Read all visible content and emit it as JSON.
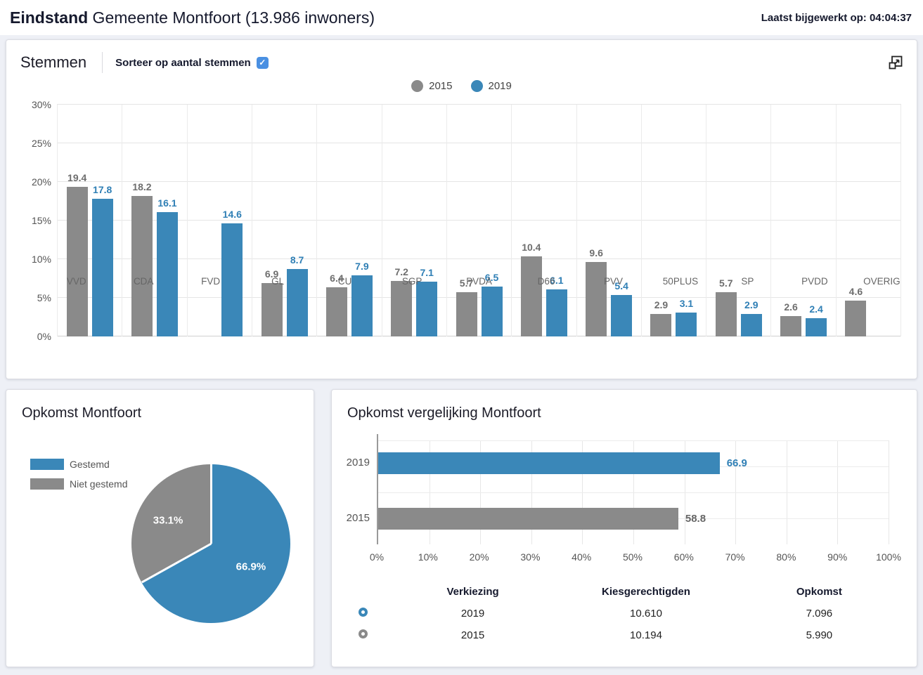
{
  "header": {
    "title_bold": "Eindstand",
    "title_rest": " Gemeente Montfoort (13.986 inwoners)",
    "last_updated": "Laatst bijgewerkt op: 04:04:37"
  },
  "colors": {
    "blue": "#3a87b8",
    "gray": "#8a8a8a",
    "blue_label": "#2f7fb5",
    "gray_label": "#6e6e6e",
    "checkbox_blue": "#4a90e2"
  },
  "stemmen_panel": {
    "title": "Stemmen",
    "sort_checkbox_label": "Sorteer op aantal stemmen",
    "sort_checkbox_checked": true,
    "checkmark": "✓"
  },
  "opkomst_panel": {
    "title": "Opkomst Montfoort"
  },
  "vergelijking_panel": {
    "title": "Opkomst vergelijking Montfoort",
    "table": {
      "headers": [
        "Verkiezing",
        "Kiesgerechtigden",
        "Opkomst"
      ],
      "rows": [
        {
          "marker_color": "#3a87b8",
          "verkiezing": "2019",
          "kiesgerechtigden": "10.610",
          "opkomst": "7.096"
        },
        {
          "marker_color": "#8a8a8a",
          "verkiezing": "2015",
          "kiesgerechtigden": "10.194",
          "opkomst": "5.990"
        }
      ]
    }
  },
  "chart_data": [
    {
      "type": "bar",
      "title": "Stemmen",
      "categories": [
        "VVD",
        "CDA",
        "FVD",
        "GL",
        "CU",
        "SGP",
        "PVDA",
        "D66",
        "PVV",
        "50PLUS",
        "SP",
        "PVDD",
        "OVERIG"
      ],
      "series": [
        {
          "name": "2015",
          "color": "#8a8a8a",
          "values": [
            19.4,
            18.2,
            null,
            6.9,
            6.4,
            7.2,
            5.7,
            10.4,
            9.6,
            2.9,
            5.7,
            2.6,
            4.6
          ]
        },
        {
          "name": "2019",
          "color": "#3a87b8",
          "values": [
            17.8,
            16.1,
            14.6,
            8.7,
            7.9,
            7.1,
            6.5,
            6.1,
            5.4,
            3.1,
            2.9,
            2.4,
            null
          ]
        }
      ],
      "ylabel": "",
      "xlabel": "",
      "ylim": [
        0,
        30
      ],
      "yticks": [
        "0%",
        "5%",
        "10%",
        "15%",
        "20%",
        "25%",
        "30%"
      ],
      "grid": true,
      "legend_position": "top-center"
    },
    {
      "type": "pie",
      "title": "Opkomst Montfoort",
      "slices": [
        {
          "label": "Gestemd",
          "value": 66.9,
          "display": "66.9%",
          "color": "#3a87b8"
        },
        {
          "label": "Niet gestemd",
          "value": 33.1,
          "display": "33.1%",
          "color": "#8a8a8a"
        }
      ],
      "start_angle_deg": 0,
      "legend_position": "left"
    },
    {
      "type": "bar-horizontal",
      "title": "Opkomst vergelijking Montfoort",
      "categories": [
        "2019",
        "2015"
      ],
      "values": [
        66.9,
        58.8
      ],
      "value_labels": [
        "66.9",
        "58.8"
      ],
      "colors": [
        "#3a87b8",
        "#8a8a8a"
      ],
      "label_colors": [
        "#2f7fb5",
        "#666666"
      ],
      "xlim": [
        0,
        100
      ],
      "xticks": [
        "0%",
        "10%",
        "20%",
        "30%",
        "40%",
        "50%",
        "60%",
        "70%",
        "80%",
        "90%",
        "100%"
      ],
      "grid": true
    }
  ]
}
